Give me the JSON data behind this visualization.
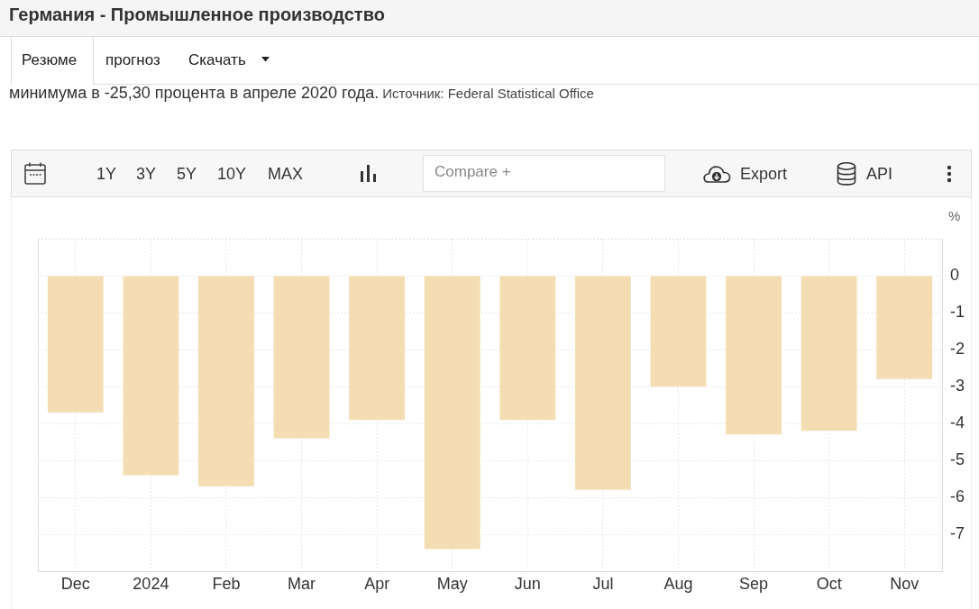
{
  "chart_data": {
    "type": "bar",
    "title": "Германия - Промышленное производство",
    "subtitle": "минимума в -25,30 процента в апреле 2020 года.",
    "ylabel": "%",
    "annotations": [
      "Источник: Federal Statistical Office",
      "Резюме",
      "прогноз",
      "Скачать",
      "1Y",
      "3Y",
      "5Y",
      "10Y",
      "MAX",
      "Compare +",
      "Export",
      "API"
    ],
    "categories": [
      "Dec",
      "2024",
      "Feb",
      "Mar",
      "Apr",
      "May",
      "Jun",
      "Jul",
      "Aug",
      "Sep",
      "Oct",
      "Nov"
    ],
    "values": [
      -3.7,
      -5.4,
      -5.7,
      -4.4,
      -3.9,
      -7.4,
      -3.9,
      -5.8,
      -3.0,
      -4.3,
      -4.2,
      -2.8
    ],
    "color": "#f4ddb2",
    "ylim": [
      -8,
      1
    ],
    "yticks": [
      -7,
      -6,
      -5,
      -4,
      -3,
      -2,
      -1,
      0
    ],
    "grid": true
  }
}
